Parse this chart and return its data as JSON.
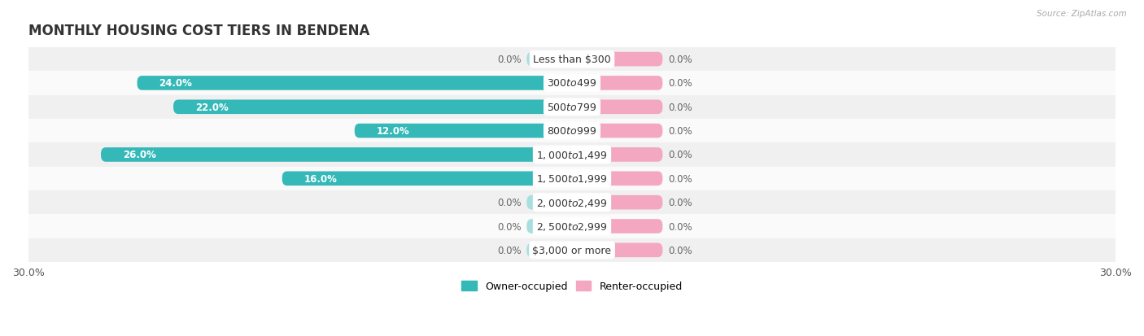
{
  "title": "MONTHLY HOUSING COST TIERS IN BENDENA",
  "source": "Source: ZipAtlas.com",
  "categories": [
    "Less than $300",
    "$300 to $499",
    "$500 to $799",
    "$800 to $999",
    "$1,000 to $1,499",
    "$1,500 to $1,999",
    "$2,000 to $2,499",
    "$2,500 to $2,999",
    "$3,000 or more"
  ],
  "owner_values": [
    0.0,
    24.0,
    22.0,
    12.0,
    26.0,
    16.0,
    0.0,
    0.0,
    0.0
  ],
  "renter_values": [
    0.0,
    0.0,
    0.0,
    0.0,
    0.0,
    0.0,
    0.0,
    0.0,
    0.0
  ],
  "owner_color": "#35b8b8",
  "owner_color_light": "#a8dede",
  "renter_color": "#f4a7c0",
  "row_bg_color_odd": "#f0f0f0",
  "row_bg_color_even": "#fafafa",
  "xlim": [
    -30,
    30
  ],
  "stub_size": 2.5,
  "renter_stub_size": 5.0,
  "title_fontsize": 12,
  "label_fontsize": 9,
  "value_fontsize": 8.5,
  "axis_label_fontsize": 9,
  "bar_height": 0.6,
  "background_color": "#ffffff"
}
